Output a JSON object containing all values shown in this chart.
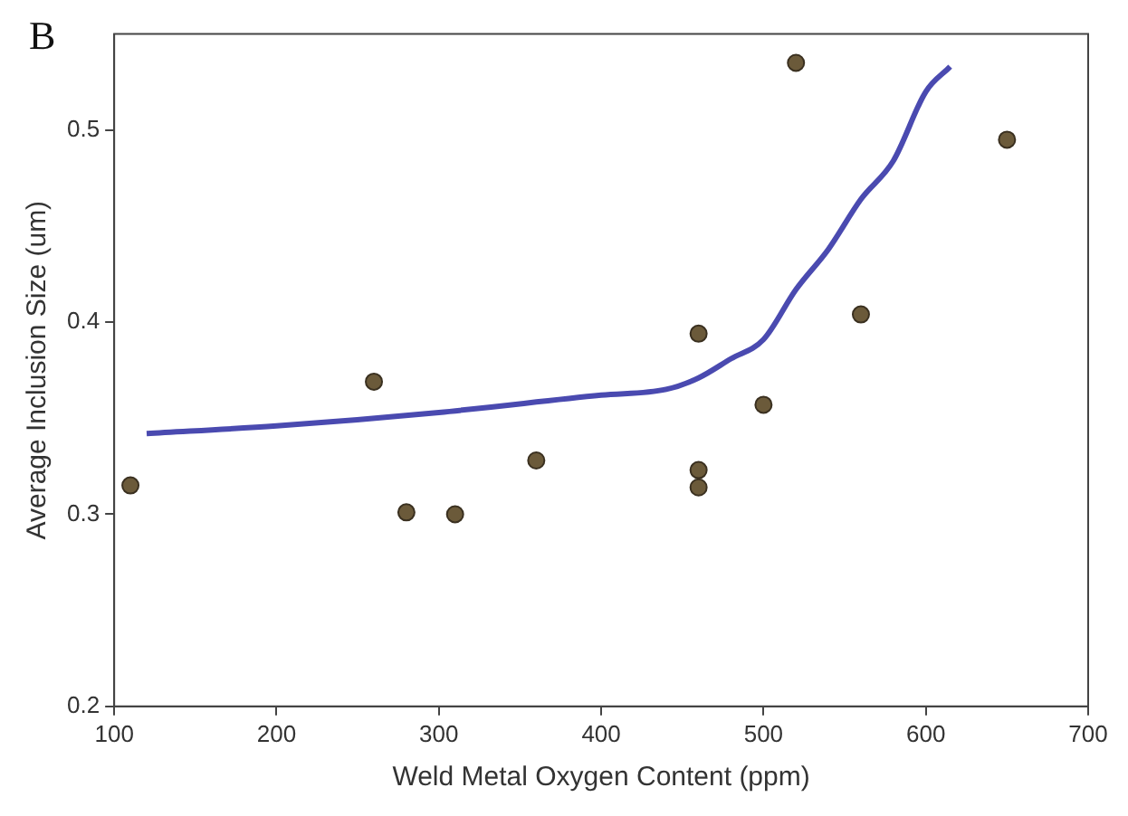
{
  "chart_data": {
    "type": "scatter",
    "xlabel": "Weld Metal Oxygen Content (ppm)",
    "ylabel": "Average Inclusion Size (um)",
    "annotations": [
      "B"
    ],
    "xlim": [
      100,
      700
    ],
    "xticks": [
      100,
      200,
      300,
      400,
      500,
      600,
      700
    ],
    "ylim": [
      0.2,
      0.55
    ],
    "yticks": [
      0.2,
      0.3,
      0.4,
      0.5
    ],
    "grid": false,
    "legend": false,
    "series": [
      {
        "marker": "circle",
        "color": "#6b5a3a",
        "x": [
          110,
          260,
          280,
          310,
          360,
          460,
          460,
          460,
          500,
          520,
          560,
          650
        ],
        "values": [
          0.315,
          0.369,
          0.301,
          0.3,
          0.328,
          0.394,
          0.323,
          0.314,
          0.357,
          0.535,
          0.404,
          0.495
        ]
      },
      {
        "type": "line",
        "marker": "none",
        "color": "#4a4ab0",
        "x": [
          120,
          200,
          300,
          400,
          440,
          460,
          480,
          500,
          520,
          540,
          560,
          580,
          600,
          615
        ],
        "values": [
          0.342,
          0.346,
          0.353,
          0.362,
          0.365,
          0.371,
          0.381,
          0.391,
          0.417,
          0.438,
          0.464,
          0.484,
          0.52,
          0.533
        ]
      }
    ]
  }
}
